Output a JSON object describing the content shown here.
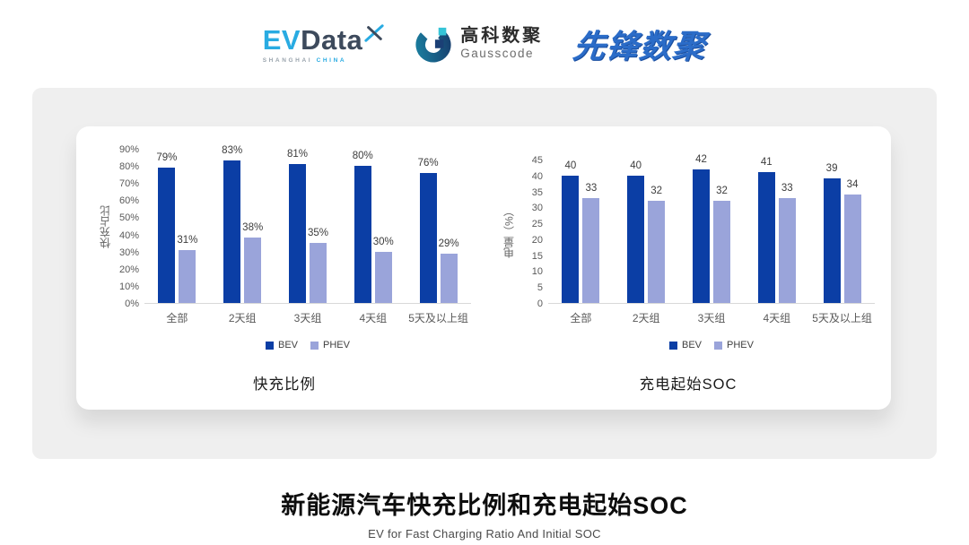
{
  "header": {
    "evdata_logo": {
      "ev": "EV",
      "data": "Data",
      "sub_left": "SHANGHAI",
      "sub_right": "CHINA"
    },
    "gausscode_logo": {
      "cn": "高科数聚",
      "en": "Gausscode"
    },
    "pioneer_logo": {
      "text": "先锋数聚"
    }
  },
  "colors": {
    "bev": "#0b3ea5",
    "phev": "#9aa4da",
    "panel_bg": "#efefef",
    "axis_line": "#d9d9d9",
    "evdata_blue": "#29abe2",
    "evdata_dark": "#3d4a5c",
    "pioneer_blue": "#2b6cc8"
  },
  "chart_data": [
    {
      "type": "bar",
      "title": "快充比例",
      "ylabel": "快充占比",
      "categories": [
        "全部",
        "2天组",
        "3天组",
        "4天组",
        "5天及以上组"
      ],
      "series": [
        {
          "name": "BEV",
          "color": "#0b3ea5",
          "values": [
            79,
            83,
            81,
            80,
            76
          ]
        },
        {
          "name": "PHEV",
          "color": "#9aa4da",
          "values": [
            31,
            38,
            35,
            30,
            29
          ]
        }
      ],
      "ylim": [
        0,
        90
      ],
      "ytick_step": 10,
      "tick_suffix": "%",
      "value_suffix": "%",
      "grid": false,
      "legend_position": "bottom"
    },
    {
      "type": "bar",
      "title": "充电起始SOC",
      "ylabel": "电量（%）",
      "categories": [
        "全部",
        "2天组",
        "3天组",
        "4天组",
        "5天及以上组"
      ],
      "series": [
        {
          "name": "BEV",
          "color": "#0b3ea5",
          "values": [
            40,
            40,
            42,
            41,
            39
          ]
        },
        {
          "name": "PHEV",
          "color": "#9aa4da",
          "values": [
            33,
            32,
            32,
            33,
            34
          ]
        }
      ],
      "ylim": [
        0,
        45
      ],
      "ytick_step": 5,
      "tick_suffix": "",
      "value_suffix": "",
      "grid": false,
      "legend_position": "bottom"
    }
  ],
  "footer": {
    "title": "新能源汽车快充比例和充电起始SOC",
    "subtitle": "EV for Fast Charging Ratio And Initial SOC"
  }
}
